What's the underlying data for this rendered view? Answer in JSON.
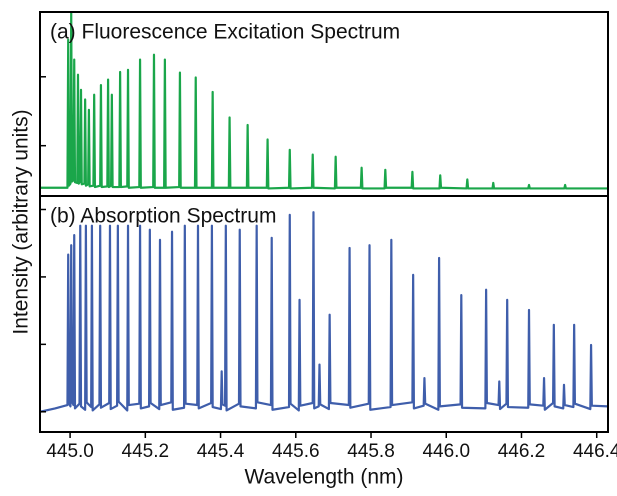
{
  "chart_data": [
    {
      "type": "line",
      "title": "(a) Fluorescence Excitation Spectrum",
      "ylabel": "Intensity (arbitrary units)",
      "color": "#1aa64a",
      "xlim": [
        444.92,
        446.43
      ],
      "ylim": [
        0.27,
        2.94
      ],
      "yticks": [
        1,
        2
      ],
      "x": [
        444.92,
        444.993,
        444.995,
        444.997,
        445.001,
        445.003,
        445.005,
        445.009,
        445.011,
        445.013,
        445.019,
        445.021,
        445.023,
        445.027,
        445.029,
        445.031,
        445.038,
        445.04,
        445.042,
        445.048,
        445.05,
        445.052,
        445.062,
        445.064,
        445.066,
        445.08,
        445.082,
        445.084,
        445.099,
        445.101,
        445.103,
        445.109,
        445.111,
        445.113,
        445.131,
        445.133,
        445.135,
        445.152,
        445.154,
        445.156,
        445.184,
        445.186,
        445.188,
        445.221,
        445.223,
        445.225,
        445.25,
        445.252,
        445.254,
        445.29,
        445.292,
        445.294,
        445.332,
        445.334,
        445.336,
        445.377,
        445.379,
        445.381,
        445.422,
        445.424,
        445.426,
        445.47,
        445.472,
        445.474,
        445.523,
        445.525,
        445.527,
        445.582,
        445.584,
        445.586,
        445.643,
        445.645,
        445.647,
        445.704,
        445.706,
        445.708,
        445.773,
        445.775,
        445.777,
        445.836,
        445.838,
        445.84,
        445.908,
        445.91,
        445.912,
        445.982,
        445.984,
        445.986,
        446.054,
        446.056,
        446.058,
        446.123,
        446.125,
        446.127,
        446.218,
        446.22,
        446.222,
        446.314,
        446.316,
        446.318,
        446.43
      ],
      "values": [
        0.39,
        0.39,
        2.54,
        0.42,
        0.45,
        2.94,
        0.48,
        0.5,
        2.25,
        0.47,
        0.46,
        2.03,
        0.45,
        0.48,
        1.81,
        0.44,
        0.45,
        1.67,
        0.42,
        0.44,
        1.52,
        0.41,
        0.42,
        1.74,
        0.4,
        0.42,
        1.88,
        0.4,
        0.41,
        1.96,
        0.4,
        0.42,
        1.74,
        0.4,
        0.4,
        2.07,
        0.4,
        0.41,
        2.1,
        0.39,
        0.4,
        2.25,
        0.39,
        0.4,
        2.32,
        0.39,
        0.39,
        2.25,
        0.39,
        0.4,
        2.06,
        0.39,
        0.39,
        1.99,
        0.39,
        0.39,
        1.78,
        0.39,
        0.39,
        1.41,
        0.39,
        0.39,
        1.3,
        0.39,
        0.39,
        1.09,
        0.38,
        0.39,
        0.94,
        0.38,
        0.39,
        0.87,
        0.39,
        0.38,
        0.84,
        0.39,
        0.39,
        0.68,
        0.38,
        0.38,
        0.65,
        0.39,
        0.39,
        0.62,
        0.38,
        0.38,
        0.57,
        0.39,
        0.38,
        0.51,
        0.38,
        0.38,
        0.46,
        0.38,
        0.38,
        0.43,
        0.38,
        0.38,
        0.43,
        0.38,
        0.38
      ]
    },
    {
      "type": "line",
      "title": "(b) Absorption Spectrum",
      "xlabel": "Wavelength (nm)",
      "color": "#3f5eab",
      "xlim": [
        444.92,
        446.43
      ],
      "ylim": [
        -0.3,
        3.2
      ],
      "yticks": [
        0,
        1,
        2,
        3
      ],
      "xticks": [
        {
          "value": 445.0,
          "label": "445.0"
        },
        {
          "value": 445.2,
          "label": "445.2"
        },
        {
          "value": 445.4,
          "label": "445.4"
        },
        {
          "value": 445.6,
          "label": "445.6"
        },
        {
          "value": 445.8,
          "label": "445.8"
        },
        {
          "value": 446.0,
          "label": "446.0"
        },
        {
          "value": 446.2,
          "label": "446.2"
        },
        {
          "value": 446.4,
          "label": "446.4"
        }
      ],
      "x": [
        444.92,
        444.96,
        444.993,
        444.995,
        444.997,
        445.001,
        445.003,
        445.005,
        445.009,
        445.011,
        445.013,
        445.025,
        445.027,
        445.029,
        445.04,
        445.042,
        445.044,
        445.056,
        445.058,
        445.06,
        445.078,
        445.08,
        445.082,
        445.104,
        445.106,
        445.108,
        445.125,
        445.127,
        445.129,
        445.152,
        445.154,
        445.156,
        445.184,
        445.186,
        445.188,
        445.21,
        445.212,
        445.214,
        445.237,
        445.239,
        445.241,
        445.269,
        445.271,
        445.273,
        445.303,
        445.305,
        445.307,
        445.338,
        445.34,
        445.342,
        445.375,
        445.377,
        445.379,
        445.401,
        445.403,
        445.405,
        445.412,
        445.414,
        445.416,
        445.449,
        445.451,
        445.453,
        445.494,
        445.496,
        445.498,
        445.534,
        445.536,
        445.538,
        445.582,
        445.584,
        445.586,
        445.608,
        445.61,
        445.612,
        445.645,
        445.647,
        445.649,
        445.661,
        445.663,
        445.665,
        445.688,
        445.69,
        445.692,
        445.741,
        445.743,
        445.745,
        445.794,
        445.796,
        445.798,
        445.852,
        445.854,
        445.856,
        445.91,
        445.912,
        445.914,
        445.94,
        445.942,
        445.944,
        445.979,
        445.981,
        445.983,
        446.038,
        446.04,
        446.042,
        446.104,
        446.106,
        446.108,
        446.139,
        446.141,
        446.143,
        446.16,
        446.162,
        446.164,
        446.218,
        446.22,
        446.222,
        446.258,
        446.26,
        446.262,
        446.284,
        446.286,
        446.288,
        446.311,
        446.313,
        446.315,
        446.338,
        446.34,
        446.342,
        446.383,
        446.385,
        446.387,
        446.43
      ],
      "values": [
        0.0,
        0.05,
        0.1,
        2.33,
        0.12,
        0.08,
        2.47,
        0.15,
        0.1,
        2.62,
        0.05,
        0.12,
        2.76,
        0.08,
        0.03,
        2.76,
        0.14,
        0.07,
        2.76,
        0.02,
        0.11,
        2.76,
        0.06,
        0.13,
        2.76,
        0.04,
        0.09,
        2.76,
        0.15,
        0.02,
        2.76,
        0.1,
        0.12,
        2.76,
        0.05,
        0.08,
        2.7,
        0.13,
        0.04,
        2.55,
        0.1,
        0.14,
        2.67,
        0.03,
        0.06,
        2.76,
        0.12,
        0.1,
        2.76,
        0.05,
        0.13,
        2.76,
        0.07,
        0.04,
        0.6,
        0.11,
        0.09,
        2.76,
        0.02,
        0.12,
        2.7,
        0.08,
        0.05,
        2.76,
        0.14,
        0.1,
        2.58,
        0.03,
        0.07,
        2.92,
        0.12,
        0.02,
        1.66,
        0.09,
        0.13,
        2.96,
        0.05,
        0.08,
        0.7,
        0.11,
        0.04,
        1.44,
        0.13,
        0.1,
        2.43,
        0.06,
        0.12,
        2.47,
        0.03,
        0.07,
        2.55,
        0.1,
        0.14,
        2.03,
        0.05,
        0.09,
        0.5,
        0.12,
        0.03,
        2.28,
        0.08,
        0.11,
        1.73,
        0.06,
        0.05,
        1.81,
        0.13,
        0.1,
        0.45,
        0.04,
        0.12,
        1.66,
        0.07,
        0.06,
        1.51,
        0.11,
        0.09,
        0.5,
        0.03,
        0.13,
        1.29,
        0.08,
        0.05,
        0.4,
        0.1,
        0.07,
        1.29,
        0.12,
        0.04,
        0.99,
        0.09,
        0.08
      ]
    }
  ]
}
